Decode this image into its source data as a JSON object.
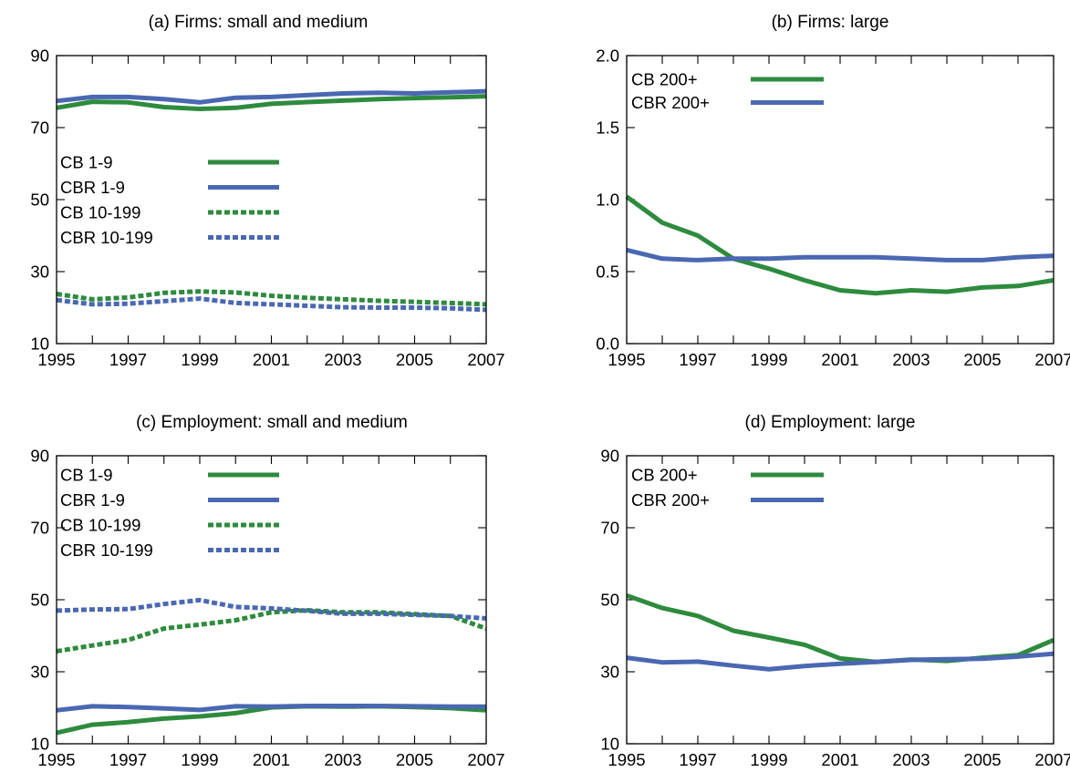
{
  "colors": {
    "cb": "#2e8b3e",
    "cbr": "#4a68b2"
  },
  "chart_data": [
    {
      "id": "a",
      "type": "line",
      "title": "(a) Firms: small and medium",
      "x": [
        1995,
        1996,
        1997,
        1998,
        1999,
        2000,
        2001,
        2002,
        2003,
        2004,
        2005,
        2006,
        2007
      ],
      "xticks": [
        "1995",
        "1997",
        "1999",
        "2001",
        "2003",
        "2005",
        "2007"
      ],
      "yticks": [
        "10",
        "30",
        "50",
        "70",
        "90"
      ],
      "ylim": [
        10,
        90
      ],
      "legend_position": "center-left",
      "series": [
        {
          "name": "CB 1-9",
          "color": "cb",
          "dash": false,
          "values": [
            75.5,
            77.2,
            77,
            75.7,
            75.2,
            75.5,
            76.6,
            77.1,
            77.5,
            77.9,
            78.2,
            78.4,
            78.7
          ]
        },
        {
          "name": "CBR 1-9",
          "color": "cbr",
          "dash": false,
          "values": [
            77.4,
            78.5,
            78.5,
            77.9,
            77.0,
            78.3,
            78.5,
            79,
            79.5,
            79.7,
            79.5,
            79.8,
            80.1
          ]
        },
        {
          "name": "CB 10-199",
          "color": "cb",
          "dash": true,
          "values": [
            23.8,
            22.3,
            22.8,
            24.1,
            24.5,
            24.2,
            23.3,
            22.7,
            22.3,
            21.9,
            21.6,
            21.3,
            20.9
          ]
        },
        {
          "name": "CBR 10-199",
          "color": "cbr",
          "dash": true,
          "values": [
            22.1,
            20.9,
            21.1,
            21.8,
            22.5,
            21.3,
            20.9,
            20.5,
            20.1,
            20,
            20,
            19.8,
            19.4
          ]
        }
      ]
    },
    {
      "id": "b",
      "type": "line",
      "title": "(b) Firms: large",
      "x": [
        1995,
        1996,
        1997,
        1998,
        1999,
        2000,
        2001,
        2002,
        2003,
        2004,
        2005,
        2006,
        2007
      ],
      "xticks": [
        "1995",
        "1997",
        "1999",
        "2001",
        "2003",
        "2005",
        "2007"
      ],
      "yticks": [
        "0.0",
        "0.5",
        "1.0",
        "1.5",
        "2.0"
      ],
      "ylim": [
        0,
        2
      ],
      "legend_position": "top-left",
      "series": [
        {
          "name": "CB 200+",
          "color": "cb",
          "dash": false,
          "values": [
            1.02,
            0.84,
            0.75,
            0.59,
            0.52,
            0.44,
            0.37,
            0.35,
            0.37,
            0.36,
            0.39,
            0.4,
            0.44
          ]
        },
        {
          "name": "CBR 200+",
          "color": "cbr",
          "dash": false,
          "values": [
            0.65,
            0.59,
            0.58,
            0.59,
            0.59,
            0.6,
            0.6,
            0.6,
            0.59,
            0.58,
            0.58,
            0.6,
            0.61
          ]
        }
      ]
    },
    {
      "id": "c",
      "type": "line",
      "title": "(c) Employment: small and medium",
      "x": [
        1995,
        1996,
        1997,
        1998,
        1999,
        2000,
        2001,
        2002,
        2003,
        2004,
        2005,
        2006,
        2007
      ],
      "xticks": [
        "1995",
        "1997",
        "1999",
        "2001",
        "2003",
        "2005",
        "2007"
      ],
      "yticks": [
        "10",
        "30",
        "50",
        "70",
        "90"
      ],
      "ylim": [
        10,
        90
      ],
      "legend_position": "top-left",
      "series": [
        {
          "name": "CB 1-9",
          "color": "cb",
          "dash": false,
          "values": [
            13,
            15.3,
            16,
            17,
            17.6,
            18.5,
            20.1,
            20.4,
            20.3,
            20.4,
            20.2,
            19.9,
            19.3
          ]
        },
        {
          "name": "CBR 1-9",
          "color": "cbr",
          "dash": false,
          "values": [
            19.3,
            20.4,
            20.2,
            19.8,
            19.4,
            20.4,
            20.3,
            20.5,
            20.5,
            20.5,
            20.4,
            20.3,
            20.3
          ]
        },
        {
          "name": "CB 10-199",
          "color": "cb",
          "dash": true,
          "values": [
            35.7,
            37.3,
            38.8,
            42,
            43.1,
            44.3,
            46.5,
            47.1,
            46.5,
            46.5,
            46,
            45.5,
            42
          ]
        },
        {
          "name": "CBR 10-199",
          "color": "cbr",
          "dash": true,
          "values": [
            47,
            47.3,
            47.4,
            48.8,
            49.9,
            48,
            47.6,
            46.9,
            46.1,
            46.1,
            45.8,
            45.5,
            44.8
          ]
        }
      ]
    },
    {
      "id": "d",
      "type": "line",
      "title": "(d) Employment: large",
      "x": [
        1995,
        1996,
        1997,
        1998,
        1999,
        2000,
        2001,
        2002,
        2003,
        2004,
        2005,
        2006,
        2007
      ],
      "xticks": [
        "1995",
        "1997",
        "1999",
        "2001",
        "2003",
        "2005",
        "2007"
      ],
      "yticks": [
        "10",
        "30",
        "50",
        "70",
        "90"
      ],
      "ylim": [
        10,
        90
      ],
      "legend_position": "top-left",
      "series": [
        {
          "name": "CB 200+",
          "color": "cb",
          "dash": false,
          "values": [
            51.2,
            47.7,
            45.5,
            41.4,
            39.5,
            37.5,
            33.7,
            32.7,
            33.4,
            33,
            33.9,
            34.6,
            38.8
          ]
        },
        {
          "name": "CBR 200+",
          "color": "cbr",
          "dash": false,
          "values": [
            33.9,
            32.6,
            32.8,
            31.7,
            30.7,
            31.6,
            32.2,
            32.7,
            33.3,
            33.5,
            33.6,
            34.2,
            35
          ]
        }
      ]
    }
  ]
}
